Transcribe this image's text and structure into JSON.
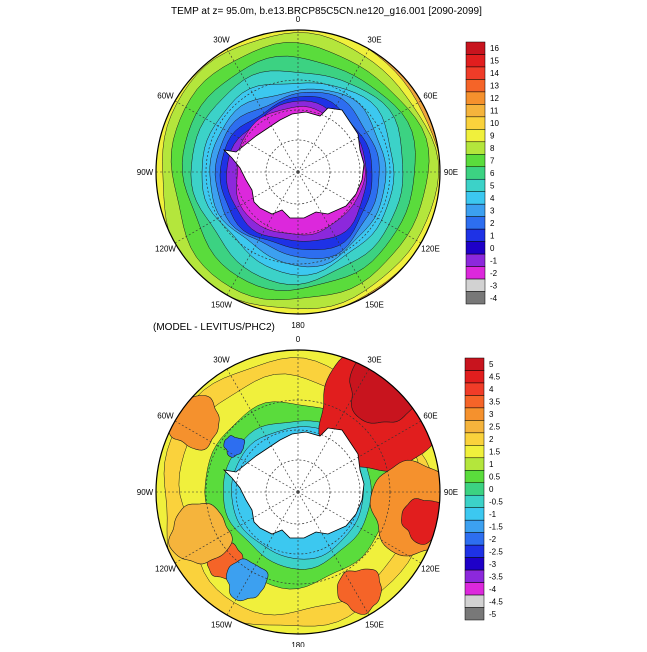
{
  "panel_top": {
    "title": "TEMP at z=  95.0m, b.e13.BRCP85C5CN.ne120_g16.001 [2090-2099]",
    "longitude_labels": [
      "0",
      "30E",
      "60E",
      "90E",
      "120E",
      "150E",
      "180",
      "150W",
      "120W",
      "90W",
      "60W",
      "30W"
    ],
    "colorbar": {
      "labels": [
        "16",
        "15",
        "14",
        "13",
        "12",
        "11",
        "10",
        "9",
        "8",
        "7",
        "6",
        "5",
        "4",
        "3",
        "2",
        "1",
        "0",
        "-1",
        "-2",
        "-3",
        "-4"
      ],
      "colors": [
        "#c8141e",
        "#e11e1e",
        "#f03c28",
        "#f56428",
        "#f5912d",
        "#f5b43c",
        "#fad23c",
        "#f0f03c",
        "#b4e63c",
        "#5adc3c",
        "#3cd282",
        "#3cd2c8",
        "#3cc8f0",
        "#3ca0f0",
        "#2d6ef0",
        "#1e32e6",
        "#1e00c8",
        "#8c28dc",
        "#dc28dc",
        "#d2d2d2",
        "#787878"
      ]
    }
  },
  "panel_bottom": {
    "title": "(MODEL - LEVITUS/PHC2)",
    "longitude_labels": [
      "0",
      "30E",
      "60E",
      "90E",
      "120E",
      "150E",
      "180",
      "150W",
      "120W",
      "90W",
      "60W",
      "30W"
    ],
    "colorbar": {
      "labels": [
        "5",
        "4.5",
        "4",
        "3.5",
        "3",
        "2.5",
        "2",
        "1.5",
        "1",
        "0.5",
        "0",
        "-0.5",
        "-1",
        "-1.5",
        "-2",
        "-2.5",
        "-3",
        "-3.5",
        "-4",
        "-4.5",
        "-5"
      ],
      "colors": [
        "#c8141e",
        "#e11e1e",
        "#f03c28",
        "#f56428",
        "#f5912d",
        "#f5b43c",
        "#fad23c",
        "#f0f03c",
        "#b4e63c",
        "#5adc3c",
        "#3cd282",
        "#3cd2c8",
        "#3cc8f0",
        "#3ca0f0",
        "#2d6ef0",
        "#1e32e6",
        "#1e00c8",
        "#8c28dc",
        "#dc28dc",
        "#d2d2d2",
        "#787878"
      ]
    }
  }
}
